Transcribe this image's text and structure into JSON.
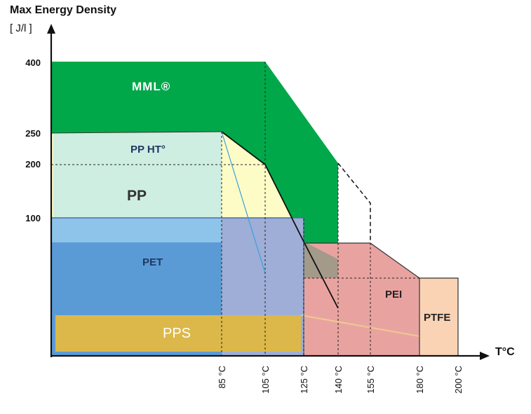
{
  "chart_data": {
    "type": "area",
    "title": "Max Energy Density",
    "ylabel_unit": "[ J/l ]",
    "xlabel": "T°C",
    "y_ticks": [
      "400",
      "250",
      "200",
      "100"
    ],
    "x_ticks": [
      "85 °C",
      "105 °C",
      "125 °C",
      "140 °C",
      "155 °C",
      "180 °C",
      "200 °C"
    ],
    "regions": [
      {
        "name": "MML®",
        "color": "#00a84a",
        "text_color": "#ffffff"
      },
      {
        "name": "PP HT°",
        "color": "#cdeee0",
        "text_color": "#1f3864"
      },
      {
        "name": "PP",
        "color": "#fefcc6",
        "text_color": "#333333"
      },
      {
        "name": "PET",
        "color": "#5b9bd5",
        "text_color": "#1f3864"
      },
      {
        "name": "PEI",
        "color": "#e8a3a0",
        "text_color": "#222222"
      },
      {
        "name": "PTFE",
        "color": "#fad3b4",
        "text_color": "#222222"
      },
      {
        "name": "PPS",
        "color": "#dcb84a",
        "text_color": "#ffffff"
      }
    ]
  }
}
